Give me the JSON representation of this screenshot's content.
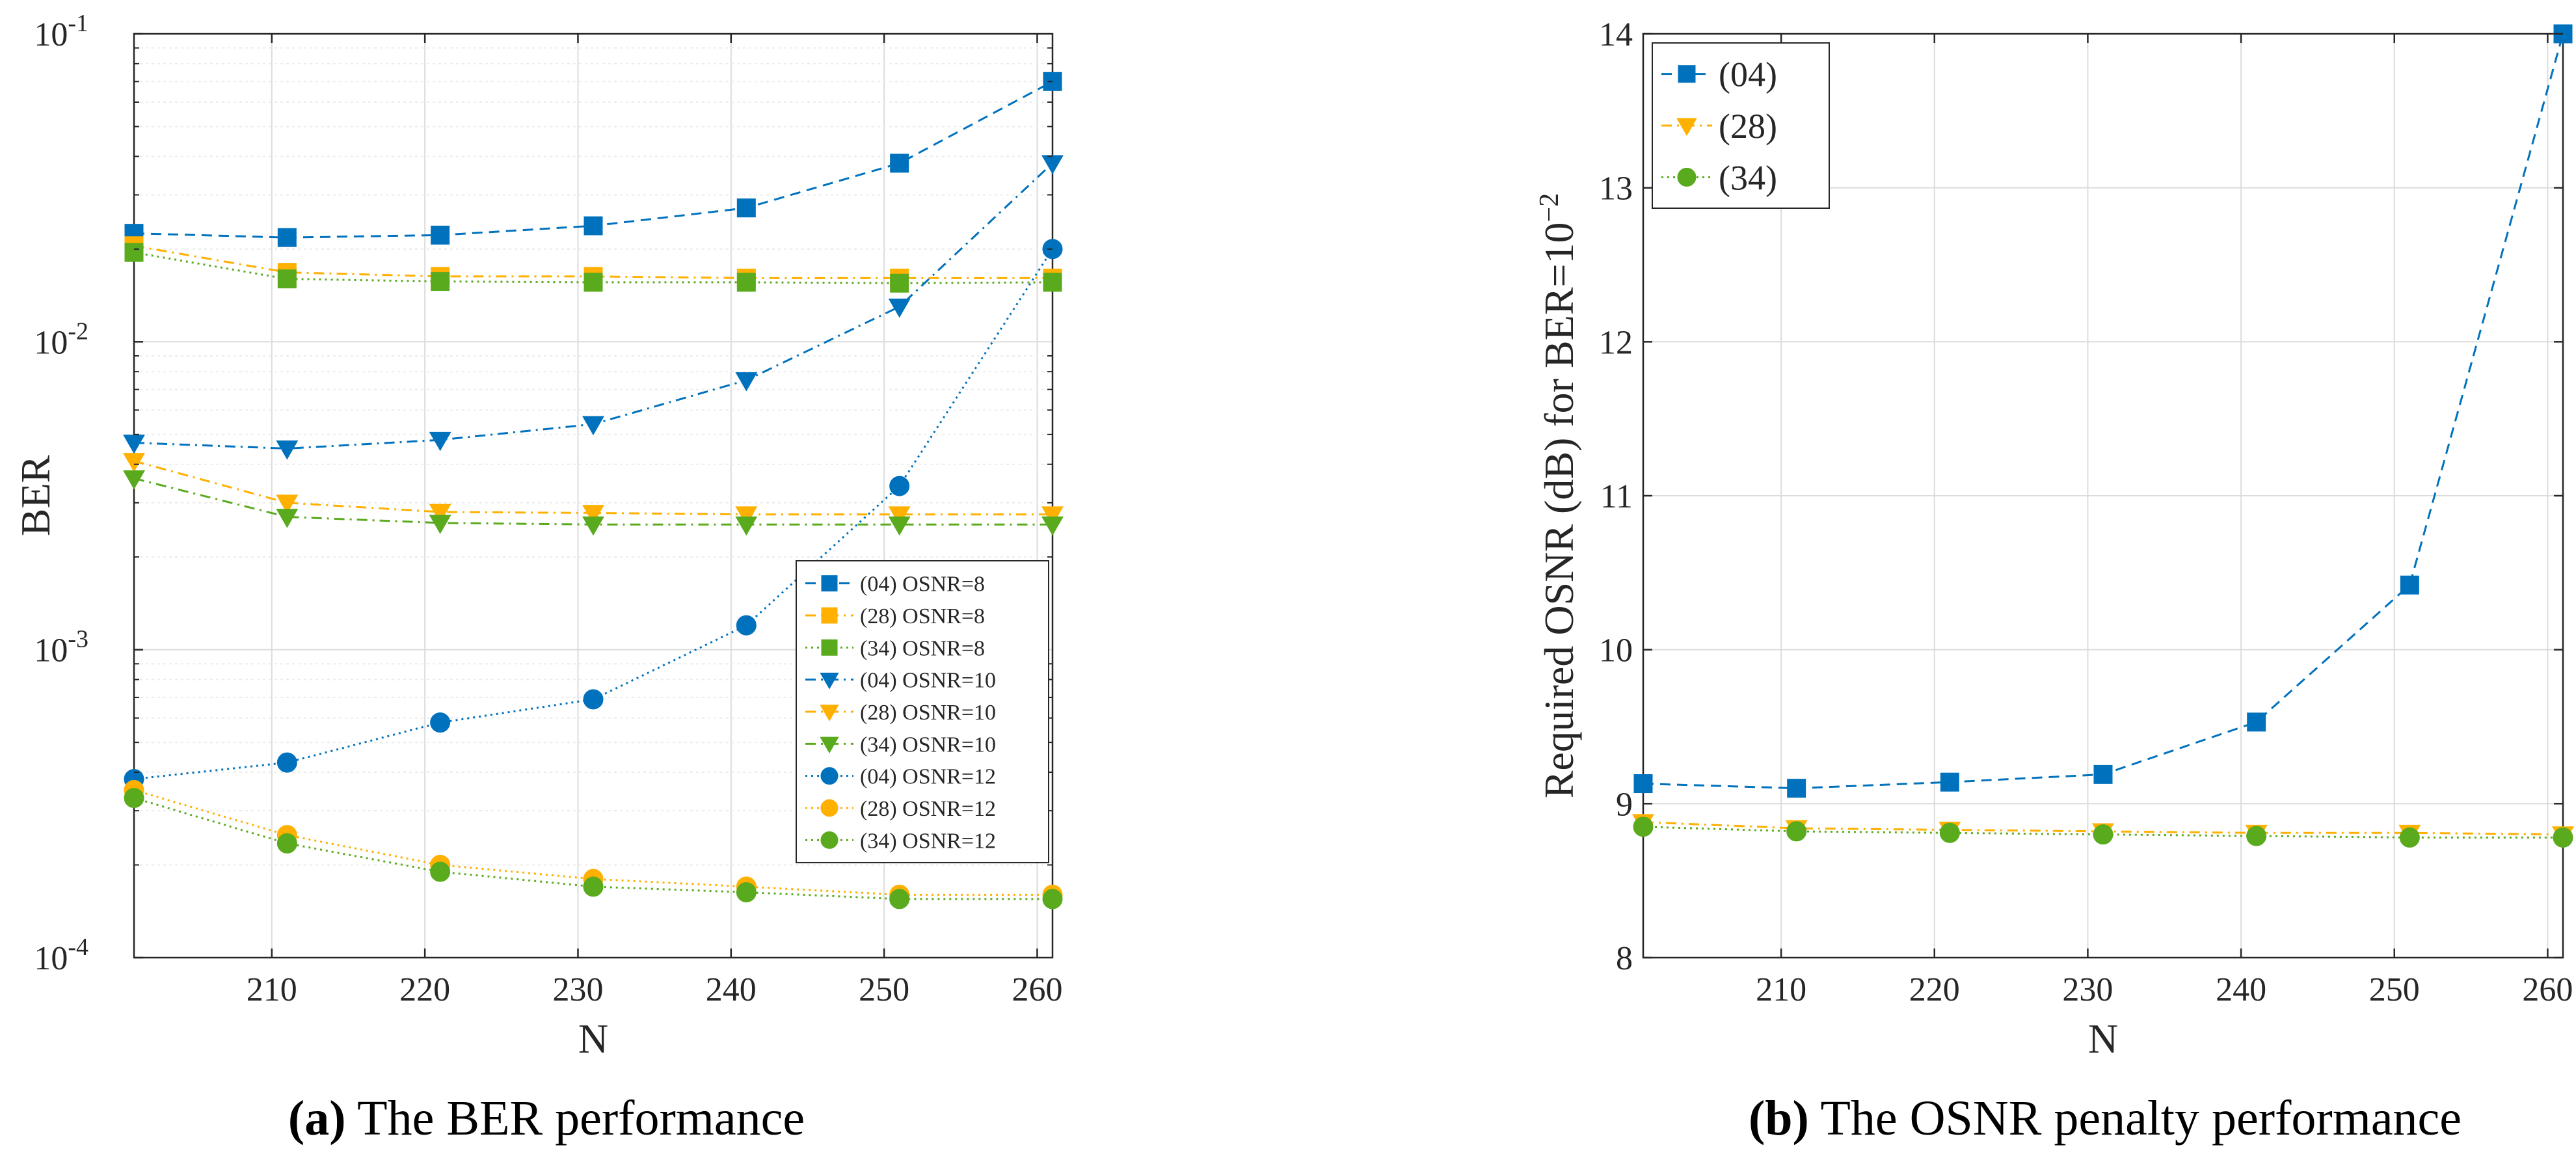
{
  "chart_data": [
    {
      "type": "line",
      "id": "a",
      "yscale": "log",
      "xlim": [
        201,
        261
      ],
      "ylim": [
        0.0001,
        0.1
      ],
      "x": [
        201,
        211,
        221,
        231,
        241,
        251,
        261
      ],
      "xticks": [
        "210",
        "220",
        "230",
        "240",
        "250",
        "260"
      ],
      "xtick_values": [
        210,
        220,
        230,
        240,
        250,
        260
      ],
      "yticks": [
        {
          "base": "10",
          "exp": "-1",
          "value": 0.1
        },
        {
          "base": "10",
          "exp": "-2",
          "value": 0.01
        },
        {
          "base": "10",
          "exp": "-3",
          "value": 0.001
        },
        {
          "base": "10",
          "exp": "-4",
          "value": 0.0001
        }
      ],
      "xlabel": "N",
      "ylabel": "BER",
      "legend_position": "lower-right",
      "series": [
        {
          "name": "(04) OSNR=8",
          "color": "#0072BD",
          "marker": "square",
          "dash": "dashed",
          "values": [
            0.0225,
            0.0218,
            0.0222,
            0.0238,
            0.0272,
            0.038,
            0.07
          ]
        },
        {
          "name": "(28) OSNR=8",
          "color": "#FFB000",
          "marker": "square",
          "dash": "dashdot",
          "values": [
            0.0205,
            0.0168,
            0.0163,
            0.0163,
            0.0161,
            0.0161,
            0.0161
          ]
        },
        {
          "name": "(34) OSNR=8",
          "color": "#5AAA1E",
          "marker": "square",
          "dash": "dotted",
          "values": [
            0.0195,
            0.016,
            0.0157,
            0.0156,
            0.0156,
            0.0155,
            0.0156
          ]
        },
        {
          "name": "(04) OSNR=10",
          "color": "#0072BD",
          "marker": "triangle-down",
          "dash": "dashdot",
          "values": [
            0.0047,
            0.0045,
            0.0048,
            0.0054,
            0.0075,
            0.013,
            0.038
          ]
        },
        {
          "name": "(28) OSNR=10",
          "color": "#FFB000",
          "marker": "triangle-down",
          "dash": "dashdot",
          "values": [
            0.0041,
            0.003,
            0.0028,
            0.00278,
            0.00275,
            0.00275,
            0.00275
          ]
        },
        {
          "name": "(34) OSNR=10",
          "color": "#5AAA1E",
          "marker": "triangle-down",
          "dash": "dashdot",
          "values": [
            0.0036,
            0.0027,
            0.00258,
            0.00255,
            0.00255,
            0.00255,
            0.00255
          ]
        },
        {
          "name": "(04) OSNR=12",
          "color": "#0072BD",
          "marker": "circle",
          "dash": "dotted",
          "values": [
            0.00038,
            0.00043,
            0.00058,
            0.00069,
            0.0012,
            0.0034,
            0.02
          ]
        },
        {
          "name": "(28) OSNR=12",
          "color": "#FFB000",
          "marker": "circle",
          "dash": "dotted",
          "values": [
            0.00035,
            0.00025,
            0.0002,
            0.00018,
            0.00017,
            0.00016,
            0.00016
          ]
        },
        {
          "name": "(34) OSNR=12",
          "color": "#5AAA1E",
          "marker": "circle",
          "dash": "dotted",
          "values": [
            0.00033,
            0.000235,
            0.00019,
            0.00017,
            0.000163,
            0.000155,
            0.000155
          ]
        }
      ],
      "caption_bold": "(a)",
      "caption": " The BER performance"
    },
    {
      "type": "line",
      "id": "b",
      "xlim": [
        201,
        261
      ],
      "ylim": [
        8,
        14
      ],
      "x": [
        201,
        211,
        221,
        231,
        241,
        251,
        261
      ],
      "xticks": [
        "210",
        "220",
        "230",
        "240",
        "250",
        "260"
      ],
      "xtick_values": [
        210,
        220,
        230,
        240,
        250,
        260
      ],
      "yticks": [
        "8",
        "9",
        "10",
        "11",
        "12",
        "13",
        "14"
      ],
      "ytick_values": [
        8,
        9,
        10,
        11,
        12,
        13,
        14
      ],
      "xlabel": "N",
      "ylabel_main": "Required OSNR (dB) for BER=10",
      "ylabel_exp": "−2",
      "legend_position": "top-left",
      "series": [
        {
          "name": "(04)",
          "color": "#0072BD",
          "marker": "square",
          "dash": "dashed",
          "values": [
            9.13,
            9.1,
            9.14,
            9.19,
            9.53,
            10.42,
            14.0
          ]
        },
        {
          "name": "(28)",
          "color": "#FFB000",
          "marker": "triangle-down",
          "dash": "dashdot",
          "values": [
            8.88,
            8.84,
            8.83,
            8.82,
            8.81,
            8.81,
            8.8
          ]
        },
        {
          "name": "(34)",
          "color": "#5AAA1E",
          "marker": "circle",
          "dash": "dotted",
          "values": [
            8.85,
            8.82,
            8.81,
            8.8,
            8.79,
            8.78,
            8.78
          ]
        }
      ],
      "caption_bold": "(b)",
      "caption": " The OSNR penalty performance"
    }
  ]
}
